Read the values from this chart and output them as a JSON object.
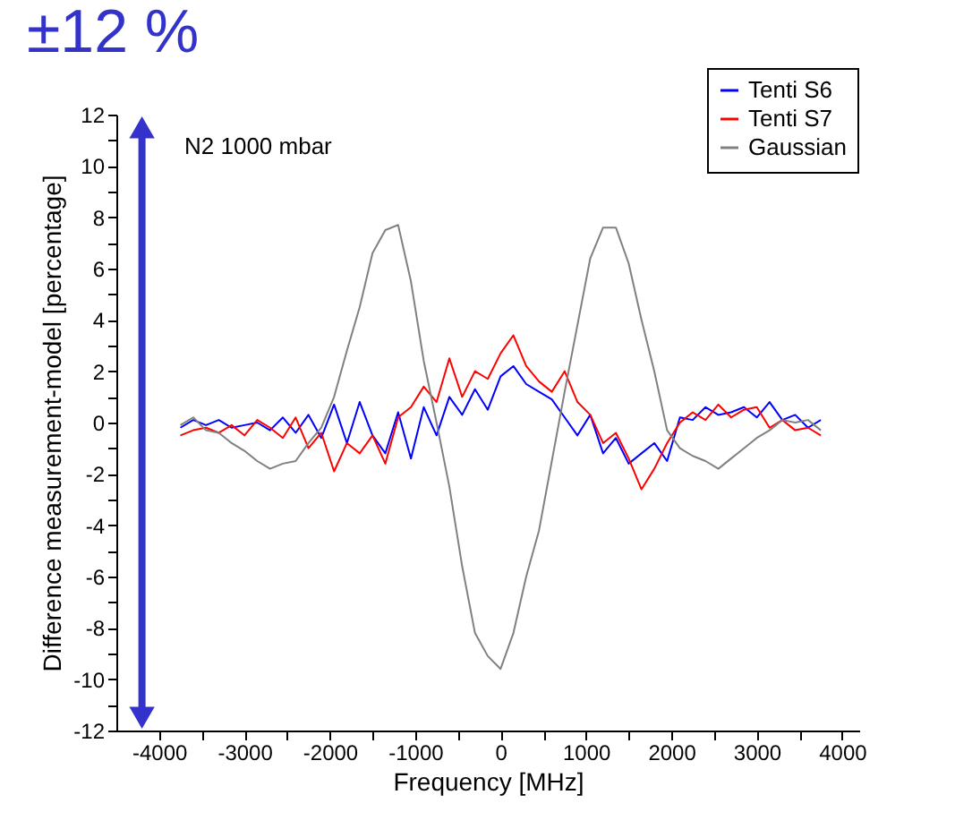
{
  "chart_data": {
    "type": "line",
    "title": "±12 %",
    "xlabel": "Frequency [MHz]",
    "ylabel": "Difference measurement-model [percentage]",
    "annotations": [
      "N2 1000 mbar"
    ],
    "x": [
      -3750,
      -3600,
      -3450,
      -3300,
      -3150,
      -3000,
      -2850,
      -2700,
      -2550,
      -2400,
      -2250,
      -2100,
      -1950,
      -1800,
      -1650,
      -1500,
      -1350,
      -1200,
      -1050,
      -900,
      -750,
      -600,
      -450,
      -300,
      -150,
      0,
      150,
      300,
      450,
      600,
      750,
      900,
      1050,
      1200,
      1350,
      1500,
      1650,
      1800,
      1950,
      2100,
      2250,
      2400,
      2550,
      2700,
      2850,
      3000,
      3150,
      3300,
      3450,
      3600,
      3750
    ],
    "series": [
      {
        "name": "Tenti S6",
        "color": "#0000ff",
        "values": [
          -0.2,
          0.1,
          -0.1,
          0.1,
          -0.2,
          -0.1,
          0.0,
          -0.3,
          0.2,
          -0.4,
          0.3,
          -0.6,
          0.7,
          -0.8,
          0.8,
          -0.5,
          -1.2,
          0.4,
          -1.4,
          0.6,
          -0.5,
          1.0,
          0.3,
          1.3,
          0.5,
          1.8,
          2.2,
          1.5,
          1.2,
          0.9,
          0.2,
          -0.5,
          0.3,
          -1.2,
          -0.6,
          -1.6,
          -1.2,
          -0.8,
          -1.5,
          0.2,
          0.1,
          0.6,
          0.3,
          0.4,
          0.6,
          0.2,
          0.8,
          0.1,
          0.3,
          -0.2,
          0.1
        ]
      },
      {
        "name": "Tenti S7",
        "color": "#ff0000",
        "values": [
          -0.5,
          -0.3,
          -0.2,
          -0.4,
          -0.1,
          -0.5,
          0.1,
          -0.2,
          -0.6,
          0.2,
          -1.0,
          -0.4,
          -1.9,
          -0.8,
          -1.2,
          -0.5,
          -1.6,
          0.2,
          0.6,
          1.4,
          0.8,
          2.5,
          1.0,
          2.0,
          1.7,
          2.7,
          3.4,
          2.2,
          1.6,
          1.2,
          2.0,
          0.8,
          0.3,
          -0.8,
          -0.4,
          -1.4,
          -2.6,
          -1.8,
          -0.8,
          0.0,
          0.4,
          0.1,
          0.7,
          0.2,
          0.5,
          0.6,
          -0.2,
          0.1,
          -0.3,
          -0.2,
          -0.5
        ]
      },
      {
        "name": "Gaussian",
        "color": "#808080",
        "values": [
          -0.1,
          0.2,
          -0.3,
          -0.4,
          -0.8,
          -1.1,
          -1.5,
          -1.8,
          -1.6,
          -1.5,
          -0.8,
          -0.2,
          1.0,
          2.8,
          4.5,
          6.6,
          7.5,
          7.7,
          5.5,
          2.4,
          0.0,
          -2.5,
          -5.6,
          -8.2,
          -9.1,
          -9.6,
          -8.2,
          -6.0,
          -4.2,
          -1.5,
          1.2,
          3.8,
          6.4,
          7.6,
          7.6,
          6.2,
          4.0,
          2.0,
          -0.3,
          -1.0,
          -1.3,
          -1.5,
          -1.8,
          -1.4,
          -1.0,
          -0.6,
          -0.3,
          0.1,
          0.0,
          0.1,
          -0.3
        ]
      },
      {
        "type": "line",
        "marker": "triangle",
        "color": "#3333cc",
        "x": [
          -4200,
          -4200
        ],
        "values": [
          -11.5,
          11.5
        ]
      }
    ],
    "xlim": [
      -4500,
      4200
    ],
    "ylim": [
      -12,
      12
    ],
    "xticks": [
      -4000,
      {
        "value": -3500,
        "label": null
      },
      -3000,
      {
        "value": -2500,
        "label": null
      },
      -2000,
      {
        "value": -1500,
        "label": null
      },
      -1000,
      {
        "value": -500,
        "label": null
      },
      0,
      {
        "value": 500,
        "label": null
      },
      1000,
      {
        "value": 1500,
        "label": null
      },
      2000,
      {
        "value": 2500,
        "label": null
      },
      3000,
      {
        "value": 3500,
        "label": null
      },
      4000
    ],
    "yticks": [
      -12,
      {
        "value": -11,
        "label": null
      },
      -10,
      {
        "value": -9,
        "label": null
      },
      -8,
      {
        "value": -7,
        "label": null
      },
      -6,
      {
        "value": -5,
        "label": null
      },
      -4,
      {
        "value": -3,
        "label": null
      },
      -2,
      {
        "value": -1,
        "label": null
      },
      0,
      {
        "value": 1,
        "label": null
      },
      2,
      {
        "value": 3,
        "label": null
      },
      4,
      {
        "value": 5,
        "label": null
      },
      6,
      {
        "value": 7,
        "label": null
      },
      8,
      {
        "value": 9,
        "label": null
      },
      10,
      {
        "value": 11,
        "label": null
      },
      12
    ],
    "grid": false,
    "legend": "top right",
    "marker": "none",
    "line_style": "solid"
  }
}
